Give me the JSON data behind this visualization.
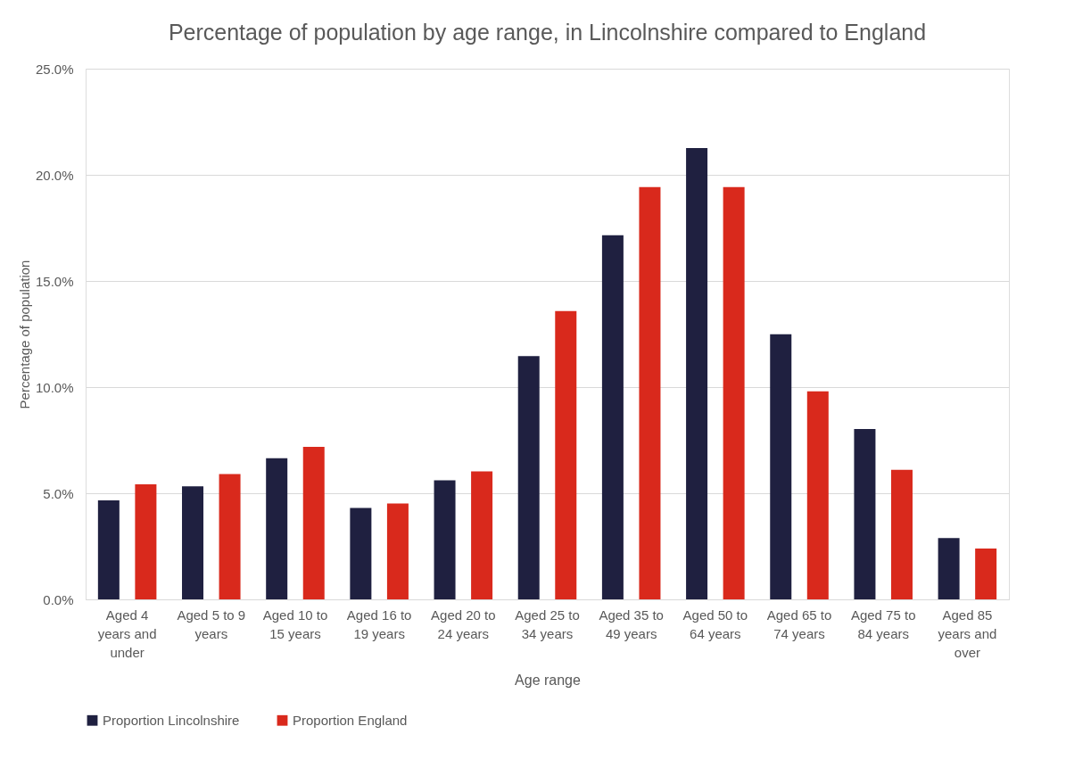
{
  "chart_data": {
    "type": "bar",
    "title": "Percentage of population by age range, in Lincolnshire compared to England",
    "xlabel": "Age range",
    "ylabel": "Percentage of population",
    "categories": [
      "Aged 4 years and under",
      "Aged 5 to 9 years",
      "Aged 10 to 15 years",
      "Aged 16 to 19 years",
      "Aged 20 to 24 years",
      "Aged 25 to 34 years",
      "Aged 35 to 49 years",
      "Aged 50 to 64 years",
      "Aged 65 to 74 years",
      "Aged 75 to 84 years",
      "Aged 85 years and over"
    ],
    "series": [
      {
        "name": "Proportion Lincolnshire",
        "color": "#1f2040",
        "values": [
          4.66,
          5.33,
          6.65,
          4.31,
          5.61,
          11.46,
          17.15,
          21.26,
          12.49,
          8.03,
          2.89
        ]
      },
      {
        "name": "Proportion England",
        "color": "#d9291c",
        "values": [
          5.42,
          5.9,
          7.19,
          4.52,
          6.03,
          13.58,
          19.42,
          19.42,
          9.8,
          6.1,
          2.4
        ]
      }
    ],
    "ylim": [
      0,
      25
    ],
    "yticks": [
      {
        "value": 0,
        "label": "0.0%"
      },
      {
        "value": 5,
        "label": "5.0%"
      },
      {
        "value": 10,
        "label": "10.0%"
      },
      {
        "value": 15,
        "label": "15.0%"
      },
      {
        "value": 20,
        "label": "20.0%"
      },
      {
        "value": 25,
        "label": "25.0%"
      }
    ],
    "grid": "y",
    "legend": "bottom"
  }
}
